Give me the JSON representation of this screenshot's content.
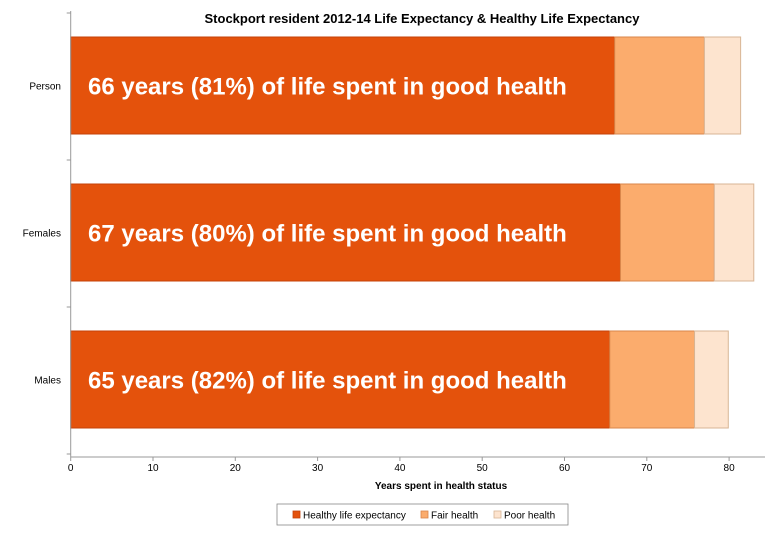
{
  "chart_data": {
    "type": "bar",
    "orientation": "horizontal",
    "stacked": true,
    "title": "Stockport resident 2012-14 Life Expectancy & Healthy Life Expectancy",
    "xlabel": "Years spent in health status",
    "ylabel": "",
    "xlim": [
      0,
      85
    ],
    "x_ticks": [
      "0",
      "10",
      "20",
      "30",
      "40",
      "50",
      "60",
      "70",
      "80"
    ],
    "grid": false,
    "legend_position": "bottom",
    "categories": [
      "Person",
      "Females",
      "Males"
    ],
    "series": [
      {
        "name": "Healthy life expectancy",
        "color": "#E4520C",
        "values": [
          66.1,
          66.8,
          65.5
        ]
      },
      {
        "name": "Fair health",
        "color": "#FBAC6D",
        "values": [
          10.9,
          11.4,
          10.3
        ]
      },
      {
        "name": "Poor health",
        "color": "#FDE4CF",
        "values": [
          4.4,
          4.8,
          4.1
        ]
      }
    ],
    "annotations": [
      "66 years (81%) of life spent in good health",
      "67 years (80%) of life spent in good health",
      "65 years (82%) of life spent in good health"
    ]
  }
}
